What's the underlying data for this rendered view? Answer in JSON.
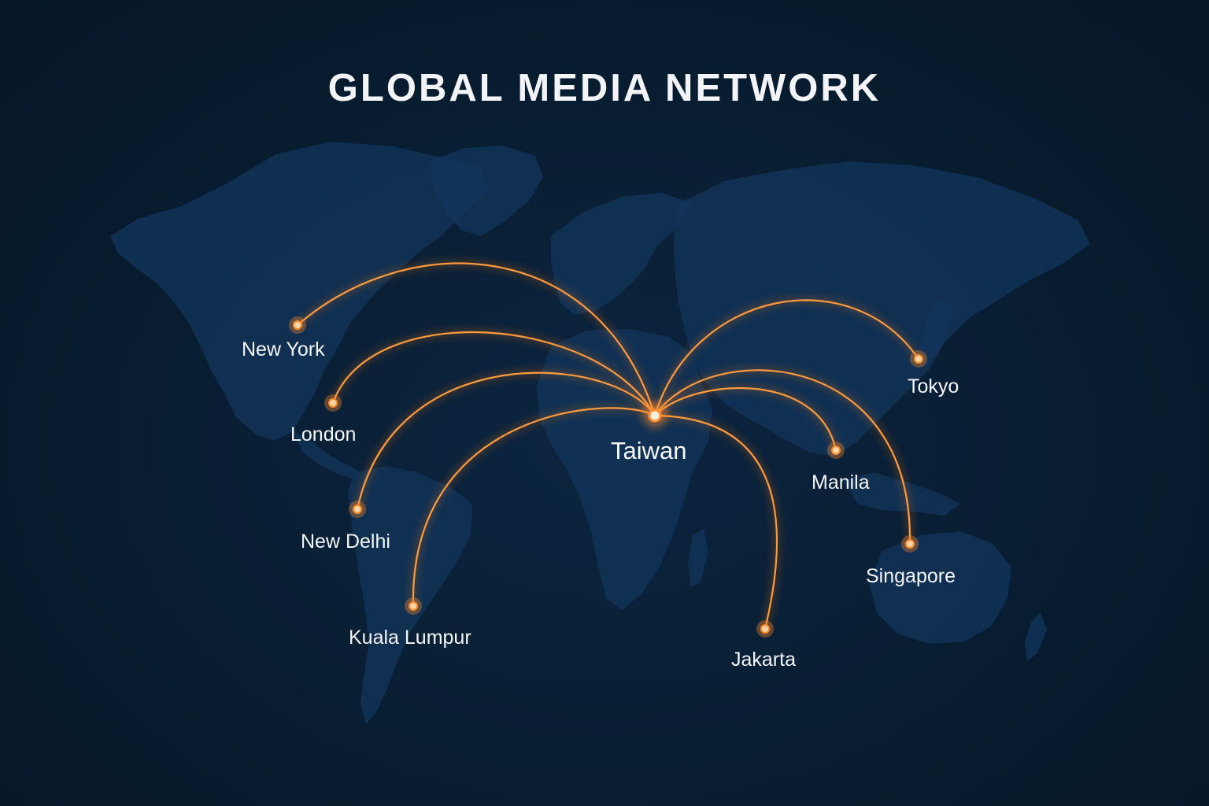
{
  "title": "GLOBAL MEDIA NETWORK",
  "hub": {
    "name": "Taiwan"
  },
  "cities": [
    {
      "name": "New York"
    },
    {
      "name": "London"
    },
    {
      "name": "New Delhi"
    },
    {
      "name": "Kuala Lumpur"
    },
    {
      "name": "Jakarta"
    },
    {
      "name": "Manila"
    },
    {
      "name": "Singapore"
    },
    {
      "name": "Tokyo"
    }
  ],
  "colors": {
    "background": "#071a2b",
    "land": "#12355a",
    "connection": "#ff9a3c",
    "node": "#ffd4a3",
    "text": "#f4f6fa"
  }
}
